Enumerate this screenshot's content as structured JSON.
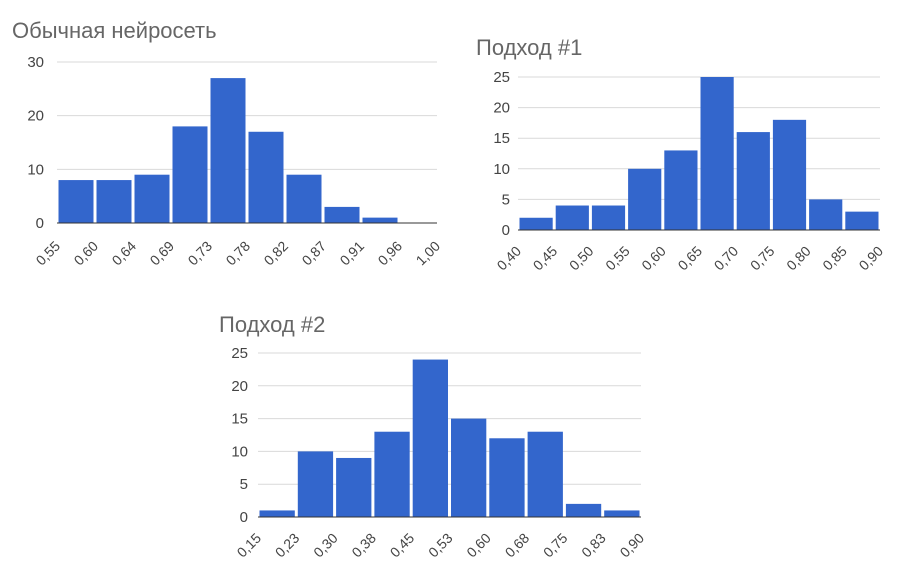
{
  "chart_data": [
    {
      "type": "bar",
      "title": "Обычная нейросеть",
      "xlabel": "",
      "ylabel": "",
      "ylim": [
        0,
        30
      ],
      "yticks": [
        "0",
        "10",
        "20",
        "30"
      ],
      "tick_labels": [
        "0,55",
        "0,60",
        "0,64",
        "0,69",
        "0,73",
        "0,78",
        "0,82",
        "0,87",
        "0,91",
        "0,96",
        "1,00"
      ],
      "values": [
        8,
        8,
        9,
        18,
        27,
        17,
        9,
        3,
        1,
        0
      ],
      "bar_color": "#3366cc",
      "grid": true,
      "legend": "none"
    },
    {
      "type": "bar",
      "title": "Подход #1",
      "xlabel": "",
      "ylabel": "",
      "ylim": [
        0,
        25
      ],
      "yticks": [
        "0",
        "5",
        "10",
        "15",
        "20",
        "25"
      ],
      "tick_labels": [
        "0,40",
        "0,45",
        "0,50",
        "0,55",
        "0,60",
        "0,65",
        "0,70",
        "0,75",
        "0,80",
        "0,85",
        "0,90"
      ],
      "values": [
        2,
        4,
        4,
        10,
        13,
        25,
        16,
        18,
        5,
        3
      ],
      "bar_color": "#3366cc",
      "grid": true,
      "legend": "none"
    },
    {
      "type": "bar",
      "title": "Подход #2",
      "xlabel": "",
      "ylabel": "",
      "ylim": [
        0,
        25
      ],
      "yticks": [
        "0",
        "5",
        "10",
        "15",
        "20",
        "25"
      ],
      "tick_labels": [
        "0,15",
        "0,23",
        "0,30",
        "0,38",
        "0,45",
        "0,53",
        "0,60",
        "0,68",
        "0,75",
        "0,83",
        "0,90"
      ],
      "values": [
        1,
        10,
        9,
        13,
        24,
        15,
        12,
        13,
        2,
        1
      ],
      "bar_color": "#3366cc",
      "grid": true,
      "legend": "none"
    }
  ]
}
